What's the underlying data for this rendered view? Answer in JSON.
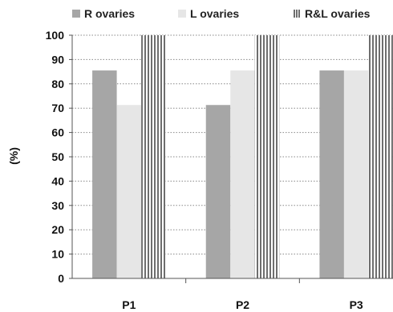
{
  "chart_data": {
    "type": "bar",
    "categories": [
      "P1",
      "P2",
      "P3"
    ],
    "series": [
      {
        "name": "R ovaries",
        "values": [
          85.5,
          71.3,
          85.5
        ],
        "color": "#a6a6a6",
        "pattern": "solid"
      },
      {
        "name": "L ovaries",
        "values": [
          71.3,
          85.5,
          85.5
        ],
        "color": "#e6e6e6",
        "pattern": "solid"
      },
      {
        "name": "R&L ovaries",
        "values": [
          100,
          100,
          100
        ],
        "color": "#808080",
        "pattern": "vertical-stripes"
      }
    ],
    "ylabel": "(%)",
    "xlabel": "",
    "ylim": [
      0,
      100
    ],
    "yticks": [
      "0",
      "10",
      "20",
      "30",
      "40",
      "50",
      "60",
      "70",
      "80",
      "90",
      "100"
    ],
    "grid": "horizontal-dotted",
    "legend": "top"
  }
}
